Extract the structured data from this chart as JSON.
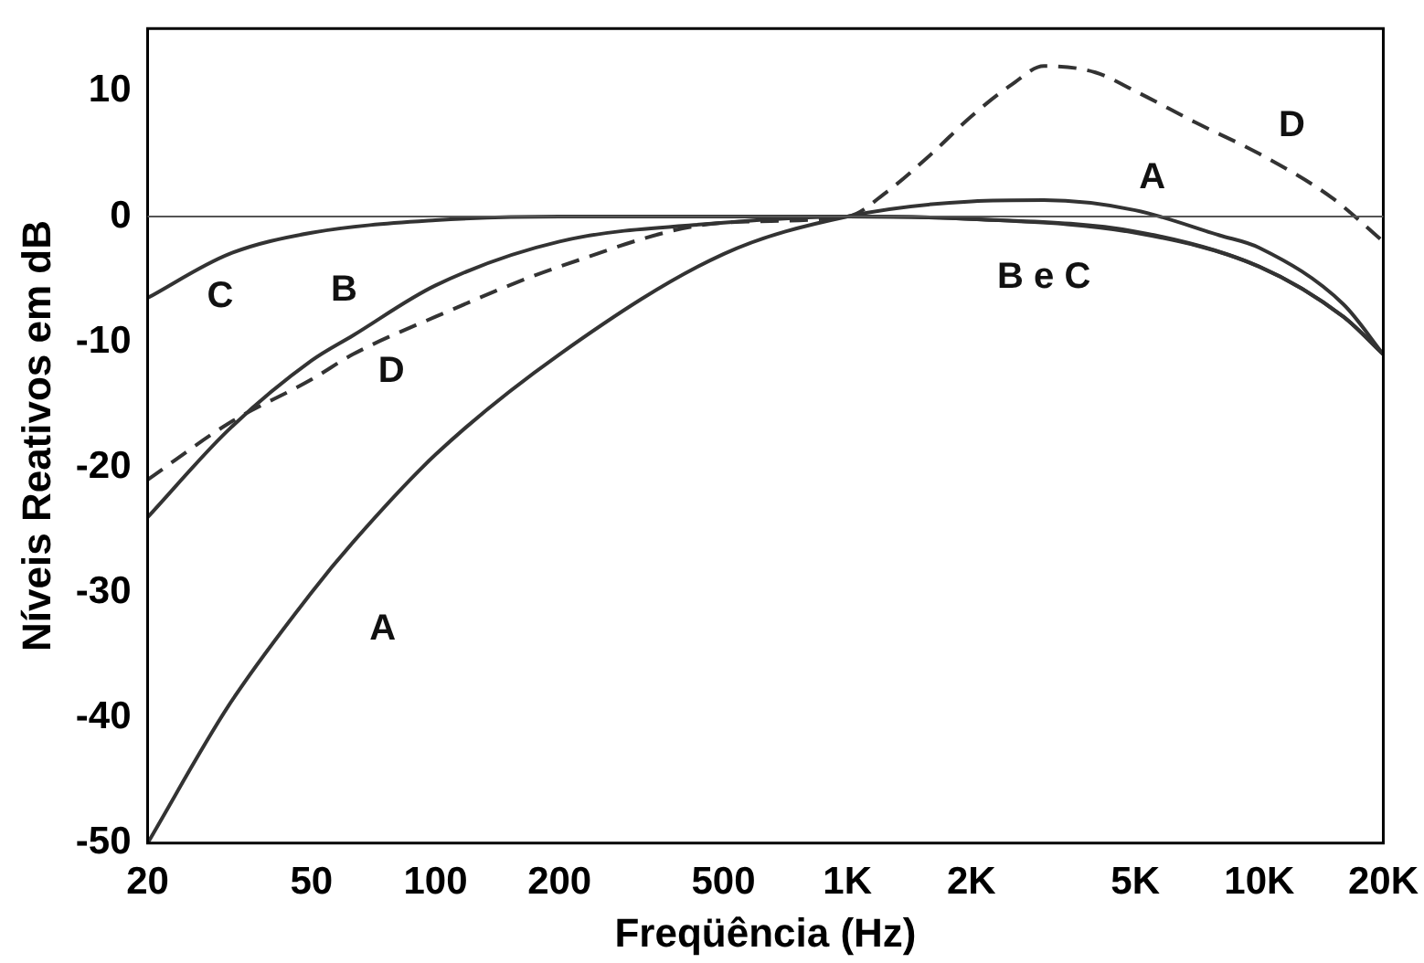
{
  "chart_data": {
    "type": "line",
    "xlabel": "Freqüência (Hz)",
    "ylabel": "Níveis Reativos em dB",
    "log": "x",
    "grid": false,
    "legend": false,
    "marker": "none",
    "xlim": [
      20,
      20000
    ],
    "xticks": [
      20,
      50,
      100,
      200,
      500,
      {
        "value": 1000,
        "label": "1K"
      },
      {
        "value": 2000,
        "label": "2K"
      },
      {
        "value": 5000,
        "label": "5K"
      },
      {
        "value": 10000,
        "label": "10K"
      },
      {
        "value": 20000,
        "label": "20K"
      }
    ],
    "ylim": [
      -50,
      15
    ],
    "yticks": [
      10,
      0,
      -10,
      -20,
      -30,
      -40,
      -50
    ],
    "series": [
      {
        "color": "#333333",
        "line_style": "solid",
        "x": [
          20,
          31.5,
          50,
          63,
          100,
          200,
          500,
          1000,
          2000,
          3000,
          5000,
          8000,
          10000,
          16000,
          20000
        ],
        "values": [
          -50,
          -39,
          -30,
          -26,
          -19,
          -11,
          -3,
          0,
          1.2,
          1.3,
          0.5,
          -1.5,
          -2.5,
          -7,
          -11
        ]
      },
      {
        "color": "#333333",
        "line_style": "solid",
        "x": [
          20,
          31.5,
          50,
          63,
          100,
          200,
          500,
          1000,
          2000,
          5000,
          10000,
          16000,
          20000
        ],
        "values": [
          -24,
          -17,
          -11.5,
          -9.5,
          -5.5,
          -2,
          -0.5,
          0,
          -0.2,
          -1.2,
          -4,
          -8,
          -11
        ]
      },
      {
        "color": "#333333",
        "line_style": "solid",
        "x": [
          20,
          31.5,
          50,
          100,
          200,
          500,
          1000,
          2000,
          5000,
          10000,
          16000,
          20000
        ],
        "values": [
          -6.5,
          -3,
          -1.3,
          -0.3,
          0,
          0,
          0,
          -0.2,
          -1.3,
          -4,
          -8,
          -11
        ]
      },
      {
        "color": "#333333",
        "line_style": "dashed",
        "x": [
          20,
          31.5,
          50,
          63,
          100,
          200,
          500,
          1000,
          1250,
          1600,
          2000,
          2500,
          3000,
          4000,
          5000,
          7000,
          10000,
          15000,
          20000
        ],
        "values": [
          -21,
          -16.5,
          -13,
          -11,
          -8,
          -4,
          -0.5,
          0,
          2,
          5,
          8,
          10.5,
          12,
          11.5,
          10,
          7.5,
          5,
          1.5,
          -2
        ]
      }
    ],
    "ref_lines": [
      {
        "axis": "y",
        "value": 0,
        "color": "#555555"
      }
    ],
    "annotations": [
      {
        "text": "A",
        "x": 70,
        "y": -24.5
      },
      {
        "text": "A",
        "x": 5500,
        "y": 0.4
      },
      {
        "text": "B",
        "x": 60,
        "y": -10
      },
      {
        "text": "C",
        "x": 30,
        "y": -3.2
      },
      {
        "text": "D",
        "x": 75,
        "y": -9.5
      },
      {
        "text": "D",
        "x": 12000,
        "y": 4
      },
      {
        "text": "B e C",
        "x": 3000,
        "y": -0.5
      }
    ]
  }
}
